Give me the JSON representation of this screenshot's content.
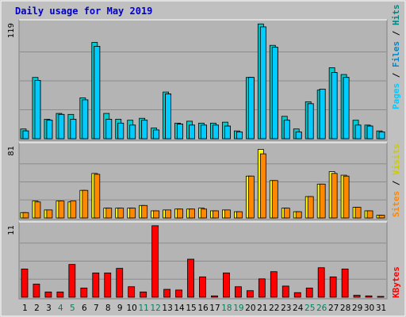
{
  "title": "Daily usage for May 2019",
  "colors": {
    "outer_bg": "#c0c0c0",
    "panel_bg": "#b4b4b4",
    "hits": "#00cccc",
    "hits_dark": "#008888",
    "files": "#00ccff",
    "pages": "#00ccff",
    "sites": "#ff8800",
    "visits": "#ffff00",
    "kbytes": "#ff0000",
    "weekend_label": "#00805c",
    "text_blue": "#0000cc",
    "text_dark": "#000000"
  },
  "legend_top": [
    "Hits",
    "/",
    "Files",
    "/",
    "Pages"
  ],
  "legend_mid": [
    "Visits",
    "/",
    "Sites"
  ],
  "legend_bottom": "KBytes",
  "chart_data": {
    "type": "bar",
    "title": "Daily usage for May 2019",
    "categories": [
      "1",
      "2",
      "3",
      "4",
      "5",
      "6",
      "7",
      "8",
      "9",
      "10",
      "11",
      "12",
      "13",
      "14",
      "15",
      "16",
      "17",
      "18",
      "19",
      "20",
      "21",
      "22",
      "23",
      "24",
      "25",
      "26",
      "27",
      "28",
      "29",
      "30",
      "31"
    ],
    "weekend_days": [
      "4",
      "5",
      "11",
      "12",
      "18",
      "19",
      "25",
      "26"
    ],
    "panels": [
      {
        "id": "top",
        "ymax_label": "119",
        "ylim": [
          0,
          119
        ],
        "series": [
          {
            "name": "Hits",
            "values": [
              10,
              63,
              20,
              26,
              25,
              42,
              99,
              26,
              20,
              19,
              21,
              11,
              48,
              16,
              18,
              16,
              16,
              17,
              8,
              63,
              118,
              96,
              23,
              10,
              38,
              50,
              73,
              66,
              19,
              14,
              8
            ]
          },
          {
            "name": "Files",
            "values": [
              8,
              60,
              19,
              25,
              20,
              40,
              95,
              20,
              16,
              14,
              19,
              9,
              46,
              15,
              14,
              14,
              14,
              13,
              7,
              63,
              115,
              94,
              19,
              7,
              36,
              51,
              68,
              63,
              14,
              13,
              7
            ]
          },
          {
            "name": "Pages",
            "values": [
              8,
              60,
              19,
              25,
              20,
              40,
              95,
              20,
              16,
              14,
              19,
              9,
              46,
              15,
              14,
              14,
              14,
              13,
              7,
              63,
              115,
              94,
              19,
              7,
              36,
              51,
              68,
              63,
              14,
              13,
              7
            ]
          }
        ]
      },
      {
        "id": "middle",
        "ymax_label": "81",
        "ylim": [
          0,
          81
        ],
        "series": [
          {
            "name": "Visits",
            "values": [
              6,
              19,
              9,
              19,
              18,
              31,
              50,
              11,
              11,
              11,
              14,
              8,
              9,
              10,
              10,
              11,
              8,
              9,
              7,
              47,
              77,
              42,
              11,
              7,
              24,
              38,
              52,
              48,
              12,
              8,
              3
            ]
          },
          {
            "name": "Sites",
            "values": [
              6,
              18,
              9,
              19,
              19,
              31,
              49,
              11,
              11,
              11,
              14,
              8,
              9,
              10,
              10,
              10,
              8,
              9,
              7,
              47,
              72,
              42,
              11,
              7,
              24,
              38,
              50,
              47,
              12,
              8,
              3
            ]
          }
        ]
      },
      {
        "id": "bottom",
        "ymax_label": "11",
        "ylim": [
          0,
          11
        ],
        "series": [
          {
            "name": "KBytes",
            "values": [
              4.3,
              2.0,
              0.8,
              0.8,
              5.0,
              1.4,
              3.7,
              3.7,
              4.4,
              1.6,
              0.8,
              10.9,
              1.2,
              1.1,
              5.8,
              3.1,
              0.2,
              3.7,
              1.6,
              1.0,
              2.8,
              3.9,
              1.7,
              0.7,
              1.4,
              4.5,
              3.1,
              4.3,
              0.3,
              0.2,
              0.1
            ]
          }
        ]
      }
    ]
  }
}
